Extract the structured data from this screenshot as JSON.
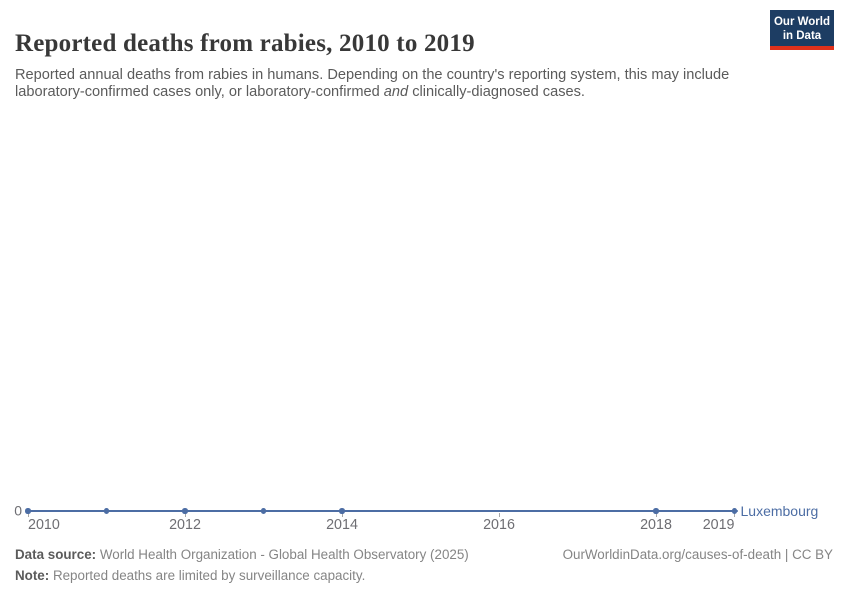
{
  "header": {
    "title": "Reported deaths from rabies, 2010 to 2019",
    "subtitle": {
      "line1": "Reported annual deaths from rabies in humans. Depending on the country's reporting system, this may include",
      "line2_pre": "laboratory-confirmed cases only, or laboratory-confirmed ",
      "line2_italic": "and",
      "line2_post": " clinically-diagnosed cases."
    },
    "logo": {
      "line1": "Our World",
      "line2": "in Data"
    }
  },
  "chart_data": {
    "type": "line",
    "title": "Reported deaths from rabies, 2010 to 2019",
    "x_axis_ticks": [
      "2010",
      "2012",
      "2014",
      "2016",
      "2018",
      "2019"
    ],
    "y_axis_tick": "0",
    "xlim": [
      2010,
      2019
    ],
    "ylim": [
      0,
      0
    ],
    "grid": false,
    "legend_position": "line-end-label",
    "series": [
      {
        "name": "Luxembourg",
        "color": "#4c6da4",
        "x": [
          2010,
          2011,
          2012,
          2013,
          2014,
          2018,
          2019
        ],
        "values": [
          0,
          0,
          0,
          0,
          0,
          0,
          0
        ]
      }
    ]
  },
  "footer": {
    "data_source_label": "Data source:",
    "data_source_value": " World Health Organization - Global Health Observatory (2025)",
    "note_label": "Note:",
    "note_value": " Reported deaths are limited by surveillance capacity.",
    "link": "OurWorldinData.org/causes-of-death | CC BY"
  },
  "colors": {
    "accent_line": "#4c6da4",
    "axis_text": "#6e6e73",
    "tick": "#a8a8a8",
    "logo_navy": "#1d3d63",
    "logo_red": "#e0311b"
  }
}
